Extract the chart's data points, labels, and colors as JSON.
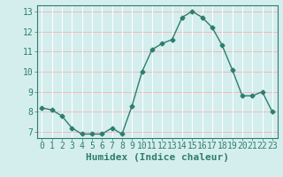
{
  "x": [
    0,
    1,
    2,
    3,
    4,
    5,
    6,
    7,
    8,
    9,
    10,
    11,
    12,
    13,
    14,
    15,
    16,
    17,
    18,
    19,
    20,
    21,
    22,
    23
  ],
  "y": [
    8.2,
    8.1,
    7.8,
    7.2,
    6.9,
    6.9,
    6.9,
    7.2,
    6.9,
    8.3,
    10.0,
    11.1,
    11.4,
    11.6,
    12.7,
    13.0,
    12.7,
    12.2,
    11.3,
    10.1,
    8.8,
    8.8,
    9.0,
    8.0
  ],
  "title": "",
  "xlabel": "Humidex (Indice chaleur)",
  "ylabel": "",
  "xlim": [
    -0.5,
    23.5
  ],
  "ylim": [
    6.7,
    13.3
  ],
  "yticks": [
    7,
    8,
    9,
    10,
    11,
    12,
    13
  ],
  "xticks": [
    0,
    1,
    2,
    3,
    4,
    5,
    6,
    7,
    8,
    9,
    10,
    11,
    12,
    13,
    14,
    15,
    16,
    17,
    18,
    19,
    20,
    21,
    22,
    23
  ],
  "line_color": "#2e7d6e",
  "marker": "D",
  "marker_size": 2.5,
  "bg_color": "#d4eeee",
  "grid_color_h": "#f5b8b8",
  "grid_color_v": "#ffffff",
  "label_color": "#2e7d6e",
  "tick_color": "#2e7d6e",
  "xlabel_fontsize": 8,
  "tick_fontsize": 7
}
